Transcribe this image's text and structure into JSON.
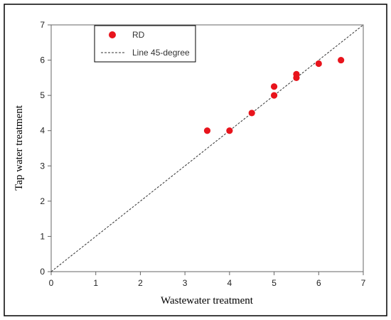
{
  "chart_data": {
    "type": "scatter",
    "title": "",
    "xlabel": "Wastewater treatment",
    "ylabel": "Tap water treatment",
    "xlim": [
      0,
      7
    ],
    "ylim": [
      0,
      7
    ],
    "xticks": [
      "0",
      "1",
      "2",
      "3",
      "4",
      "5",
      "6",
      "7"
    ],
    "yticks": [
      "0",
      "1",
      "2",
      "3",
      "4",
      "5",
      "6",
      "7"
    ],
    "grid": false,
    "legend_position": "top-left",
    "series": [
      {
        "name": "RD",
        "kind": "points",
        "color": "#e8141c",
        "points": [
          {
            "x": 3.5,
            "y": 4.0
          },
          {
            "x": 4.0,
            "y": 4.0
          },
          {
            "x": 4.5,
            "y": 4.5
          },
          {
            "x": 5.0,
            "y": 5.25
          },
          {
            "x": 5.0,
            "y": 5.0
          },
          {
            "x": 5.5,
            "y": 5.6
          },
          {
            "x": 5.5,
            "y": 5.5
          },
          {
            "x": 6.0,
            "y": 5.9
          },
          {
            "x": 6.5,
            "y": 6.0
          }
        ]
      },
      {
        "name": "Line 45-degree",
        "kind": "dashed-line",
        "color": "#333333",
        "points": [
          {
            "x": 0,
            "y": 0
          },
          {
            "x": 7,
            "y": 7
          }
        ]
      }
    ]
  }
}
